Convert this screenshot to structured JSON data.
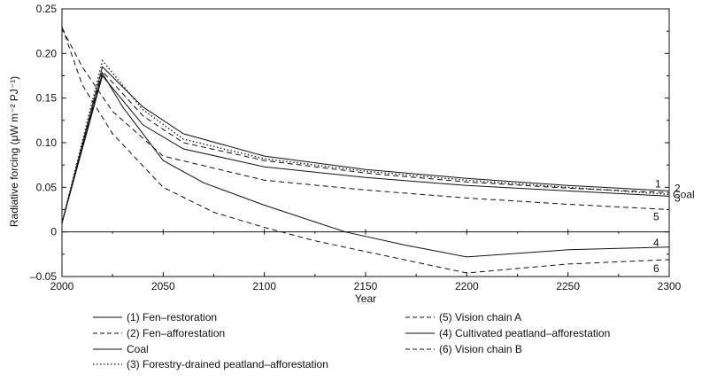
{
  "chart_data": {
    "type": "line",
    "xlabel": "Year",
    "ylabel": "Radiative forcing (μW m⁻² PJ⁻¹)",
    "xlim": [
      2000,
      2300
    ],
    "ylim": [
      -0.05,
      0.25
    ],
    "xticks": [
      "2000",
      "2050",
      "2100",
      "2150",
      "2200",
      "2250",
      "2300"
    ],
    "yticks": [
      "0.25",
      "0.20",
      "0.15",
      "0.10",
      "0.05",
      "0",
      "–0.05"
    ],
    "grid": false,
    "zero_line": true,
    "legend_position": "bottom",
    "series": [
      {
        "name": "(1) Fen–restoration",
        "label": "1",
        "style": "solid",
        "x": [
          2000,
          2020,
          2040,
          2060,
          2100,
          2150,
          2200,
          2250,
          2300
        ],
        "y": [
          0.01,
          0.185,
          0.14,
          0.11,
          0.085,
          0.07,
          0.06,
          0.052,
          0.046
        ]
      },
      {
        "name": "(2) Fen–afforestation",
        "label": "2",
        "style": "dashed",
        "x": [
          2000,
          2020,
          2040,
          2060,
          2100,
          2150,
          2200,
          2250,
          2300
        ],
        "y": [
          0.01,
          0.18,
          0.13,
          0.1,
          0.08,
          0.066,
          0.056,
          0.049,
          0.044
        ]
      },
      {
        "name": "Coal",
        "label": "Coal",
        "style": "solid",
        "x": [
          2000,
          2020,
          2040,
          2060,
          2100,
          2150,
          2200,
          2250,
          2300
        ],
        "y": [
          0.01,
          0.175,
          0.12,
          0.093,
          0.073,
          0.061,
          0.052,
          0.046,
          0.04
        ]
      },
      {
        "name": "(3) Forestry-drained peatland–afforestation",
        "label": "3",
        "style": "dotted",
        "x": [
          2000,
          2020,
          2040,
          2060,
          2100,
          2150,
          2200,
          2250,
          2300
        ],
        "y": [
          0.01,
          0.192,
          0.137,
          0.104,
          0.082,
          0.068,
          0.058,
          0.05,
          0.042
        ]
      },
      {
        "name": "(5) Vision chain A",
        "label": "5",
        "style": "dashed",
        "x": [
          2000,
          2010,
          2025,
          2050,
          2100,
          2150,
          2200,
          2250,
          2300
        ],
        "y": [
          0.228,
          0.185,
          0.135,
          0.085,
          0.058,
          0.047,
          0.038,
          0.031,
          0.025
        ]
      },
      {
        "name": "(4) Cultivated peatland–afforestation",
        "label": "4",
        "style": "solid",
        "x": [
          2000,
          2020,
          2030,
          2050,
          2070,
          2100,
          2140,
          2170,
          2200,
          2250,
          2300
        ],
        "y": [
          0.01,
          0.178,
          0.14,
          0.08,
          0.055,
          0.03,
          0.0,
          -0.015,
          -0.028,
          -0.02,
          -0.017
        ]
      },
      {
        "name": "(6) Vision chain B",
        "label": "6",
        "style": "dashed",
        "x": [
          2000,
          2010,
          2025,
          2050,
          2075,
          2100,
          2125,
          2150,
          2200,
          2250,
          2300
        ],
        "y": [
          0.23,
          0.165,
          0.11,
          0.05,
          0.022,
          0.005,
          -0.01,
          -0.022,
          -0.046,
          -0.036,
          -0.031
        ]
      }
    ]
  }
}
